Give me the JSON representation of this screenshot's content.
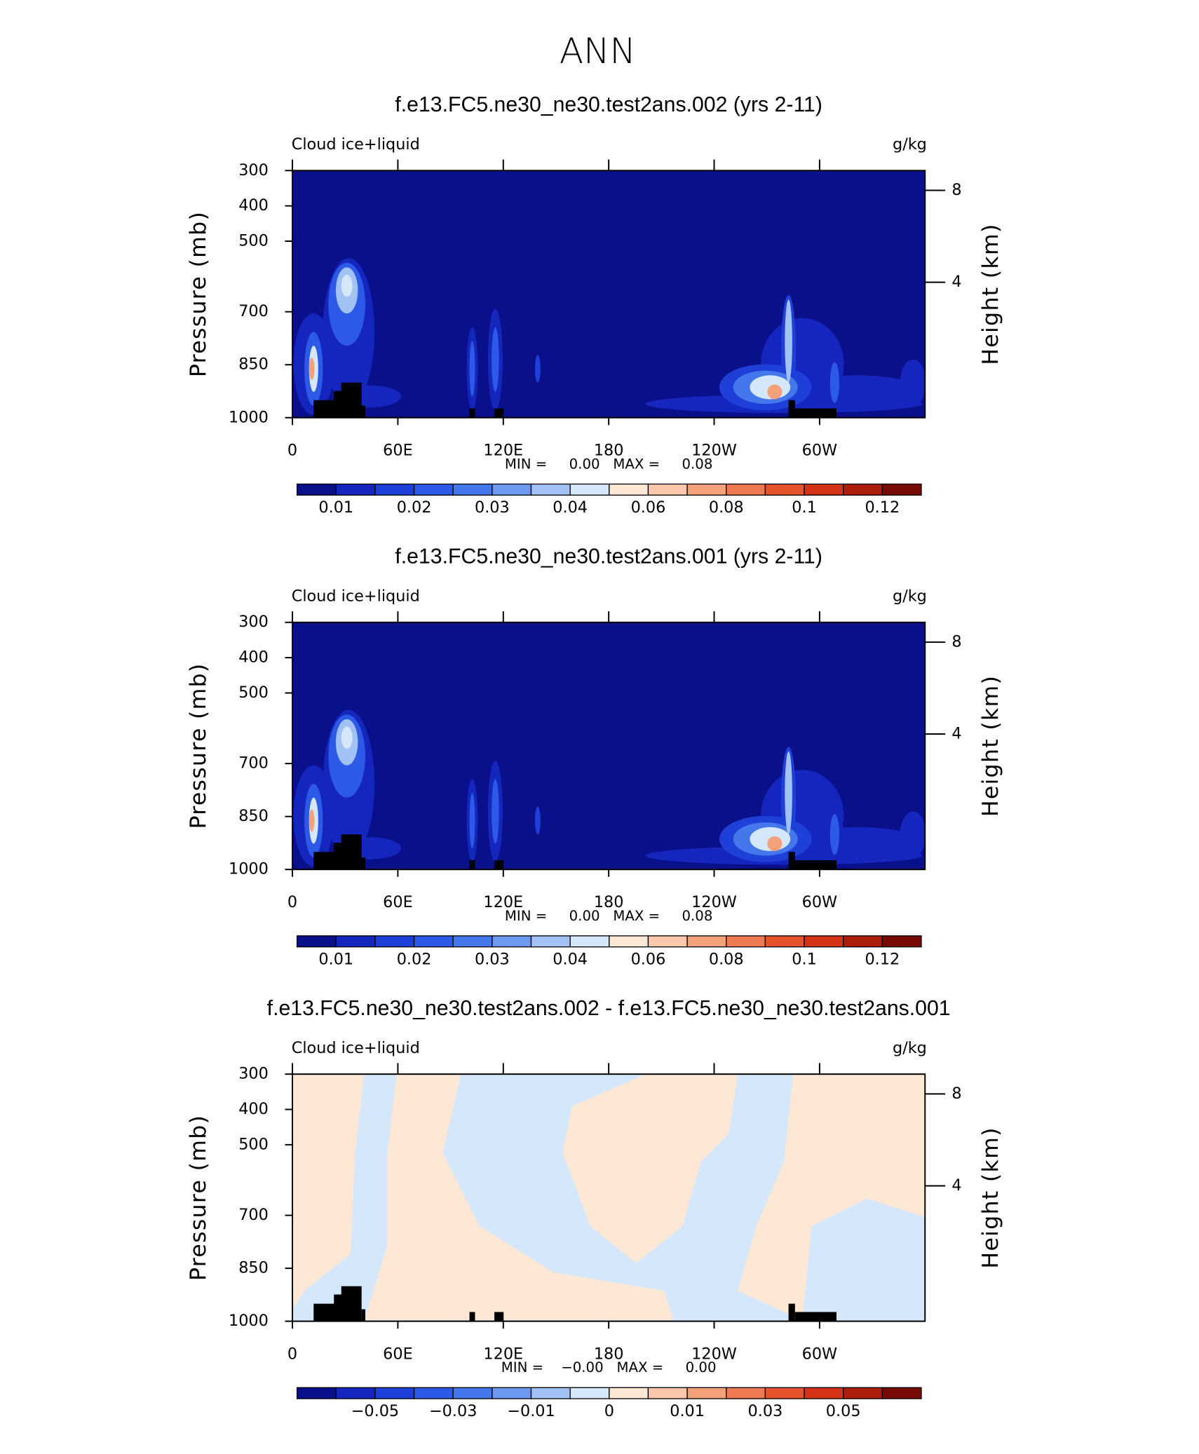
{
  "title": "ANN",
  "chart_data": [
    {
      "type": "contour",
      "title": "f.e13.FC5.ne30_ne30.test2ans.002 (yrs 2-11)",
      "left_label": "Cloud ice+liquid",
      "right_label": "g/kg",
      "ylabel": "Pressure (mb)",
      "y2label": "Height (km)",
      "xlim": [
        0,
        360
      ],
      "xticks": [
        0,
        {
          "value": 60,
          "label": "60E"
        },
        {
          "value": 120,
          "label": "120E"
        },
        180,
        {
          "value": 240,
          "label": "120W"
        },
        {
          "value": 300,
          "label": "60W"
        }
      ],
      "ylim": [
        1000,
        300
      ],
      "yticks": [
        300,
        400,
        500,
        700,
        850,
        1000
      ],
      "y2lim": [
        0.1,
        9.2
      ],
      "y2ticks": [
        4,
        8
      ],
      "stats": "MIN =     0.00   MAX =     0.08",
      "colorbar": {
        "levels": [
          0.01,
          0.015,
          0.02,
          0.025,
          0.03,
          0.035,
          0.04,
          0.05,
          0.06,
          0.07,
          0.08,
          0.09,
          0.1,
          0.11,
          0.12
        ],
        "ticks": [
          0.01,
          0.02,
          0.03,
          0.04,
          0.06,
          0.08,
          0.1,
          0.12
        ],
        "colors": [
          "#0a0f8a",
          "#1426bd",
          "#1f40d8",
          "#2c5ae6",
          "#4477ec",
          "#6e99f0",
          "#a2c2f5",
          "#d5e7fa",
          "#fde7d5",
          "#f9c8aa",
          "#f4a07a",
          "#ee7a52",
          "#e6522b",
          "#d43316",
          "#ad1d0b",
          "#7a0b04"
        ]
      }
    },
    {
      "type": "contour",
      "title": "f.e13.FC5.ne30_ne30.test2ans.001 (yrs 2-11)",
      "left_label": "Cloud ice+liquid",
      "right_label": "g/kg",
      "ylabel": "Pressure (mb)",
      "y2label": "Height (km)",
      "xlim": [
        0,
        360
      ],
      "xticks": [
        0,
        {
          "value": 60,
          "label": "60E"
        },
        {
          "value": 120,
          "label": "120E"
        },
        180,
        {
          "value": 240,
          "label": "120W"
        },
        {
          "value": 300,
          "label": "60W"
        }
      ],
      "ylim": [
        1000,
        300
      ],
      "yticks": [
        300,
        400,
        500,
        700,
        850,
        1000
      ],
      "y2lim": [
        0.1,
        9.2
      ],
      "y2ticks": [
        4,
        8
      ],
      "stats": "MIN =     0.00   MAX =     0.08",
      "colorbar": {
        "levels": [
          0.01,
          0.015,
          0.02,
          0.025,
          0.03,
          0.035,
          0.04,
          0.05,
          0.06,
          0.07,
          0.08,
          0.09,
          0.1,
          0.11,
          0.12
        ],
        "ticks": [
          0.01,
          0.02,
          0.03,
          0.04,
          0.06,
          0.08,
          0.1,
          0.12
        ],
        "colors": [
          "#0a0f8a",
          "#1426bd",
          "#1f40d8",
          "#2c5ae6",
          "#4477ec",
          "#6e99f0",
          "#a2c2f5",
          "#d5e7fa",
          "#fde7d5",
          "#f9c8aa",
          "#f4a07a",
          "#ee7a52",
          "#e6522b",
          "#d43316",
          "#ad1d0b",
          "#7a0b04"
        ]
      }
    },
    {
      "type": "contour",
      "title": "f.e13.FC5.ne30_ne30.test2ans.002 - f.e13.FC5.ne30_ne30.test2ans.001",
      "left_label": "Cloud ice+liquid",
      "right_label": "g/kg",
      "ylabel": "Pressure (mb)",
      "y2label": "Height (km)",
      "xlim": [
        0,
        360
      ],
      "xticks": [
        0,
        {
          "value": 60,
          "label": "60E"
        },
        {
          "value": 120,
          "label": "120E"
        },
        180,
        {
          "value": 240,
          "label": "120W"
        },
        {
          "value": 300,
          "label": "60W"
        }
      ],
      "ylim": [
        1000,
        300
      ],
      "yticks": [
        300,
        400,
        500,
        700,
        850,
        1000
      ],
      "y2lim": [
        0.1,
        9.2
      ],
      "y2ticks": [
        4,
        8
      ],
      "stats": "MIN =    −0.00   MAX =     0.00",
      "colorbar": {
        "levels": [
          -0.06,
          -0.05,
          -0.04,
          -0.03,
          -0.02,
          -0.01,
          -0.005,
          0,
          0.005,
          0.01,
          0.02,
          0.03,
          0.04,
          0.05,
          0.06
        ],
        "ticks": [
          {
            "value": -0.05,
            "label": "−0.05"
          },
          {
            "value": -0.03,
            "label": "−0.03"
          },
          {
            "value": -0.01,
            "label": "−0.01"
          },
          0,
          0.01,
          0.03,
          0.05
        ],
        "colors": [
          "#0a0f8a",
          "#1426bd",
          "#1f40d8",
          "#2c5ae6",
          "#4477ec",
          "#6e99f0",
          "#a2c2f5",
          "#d5e7fa",
          "#fde7d5",
          "#f9c8aa",
          "#f4a07a",
          "#ee7a52",
          "#e6522b",
          "#d43316",
          "#ad1d0b",
          "#7a0b04"
        ]
      }
    }
  ]
}
